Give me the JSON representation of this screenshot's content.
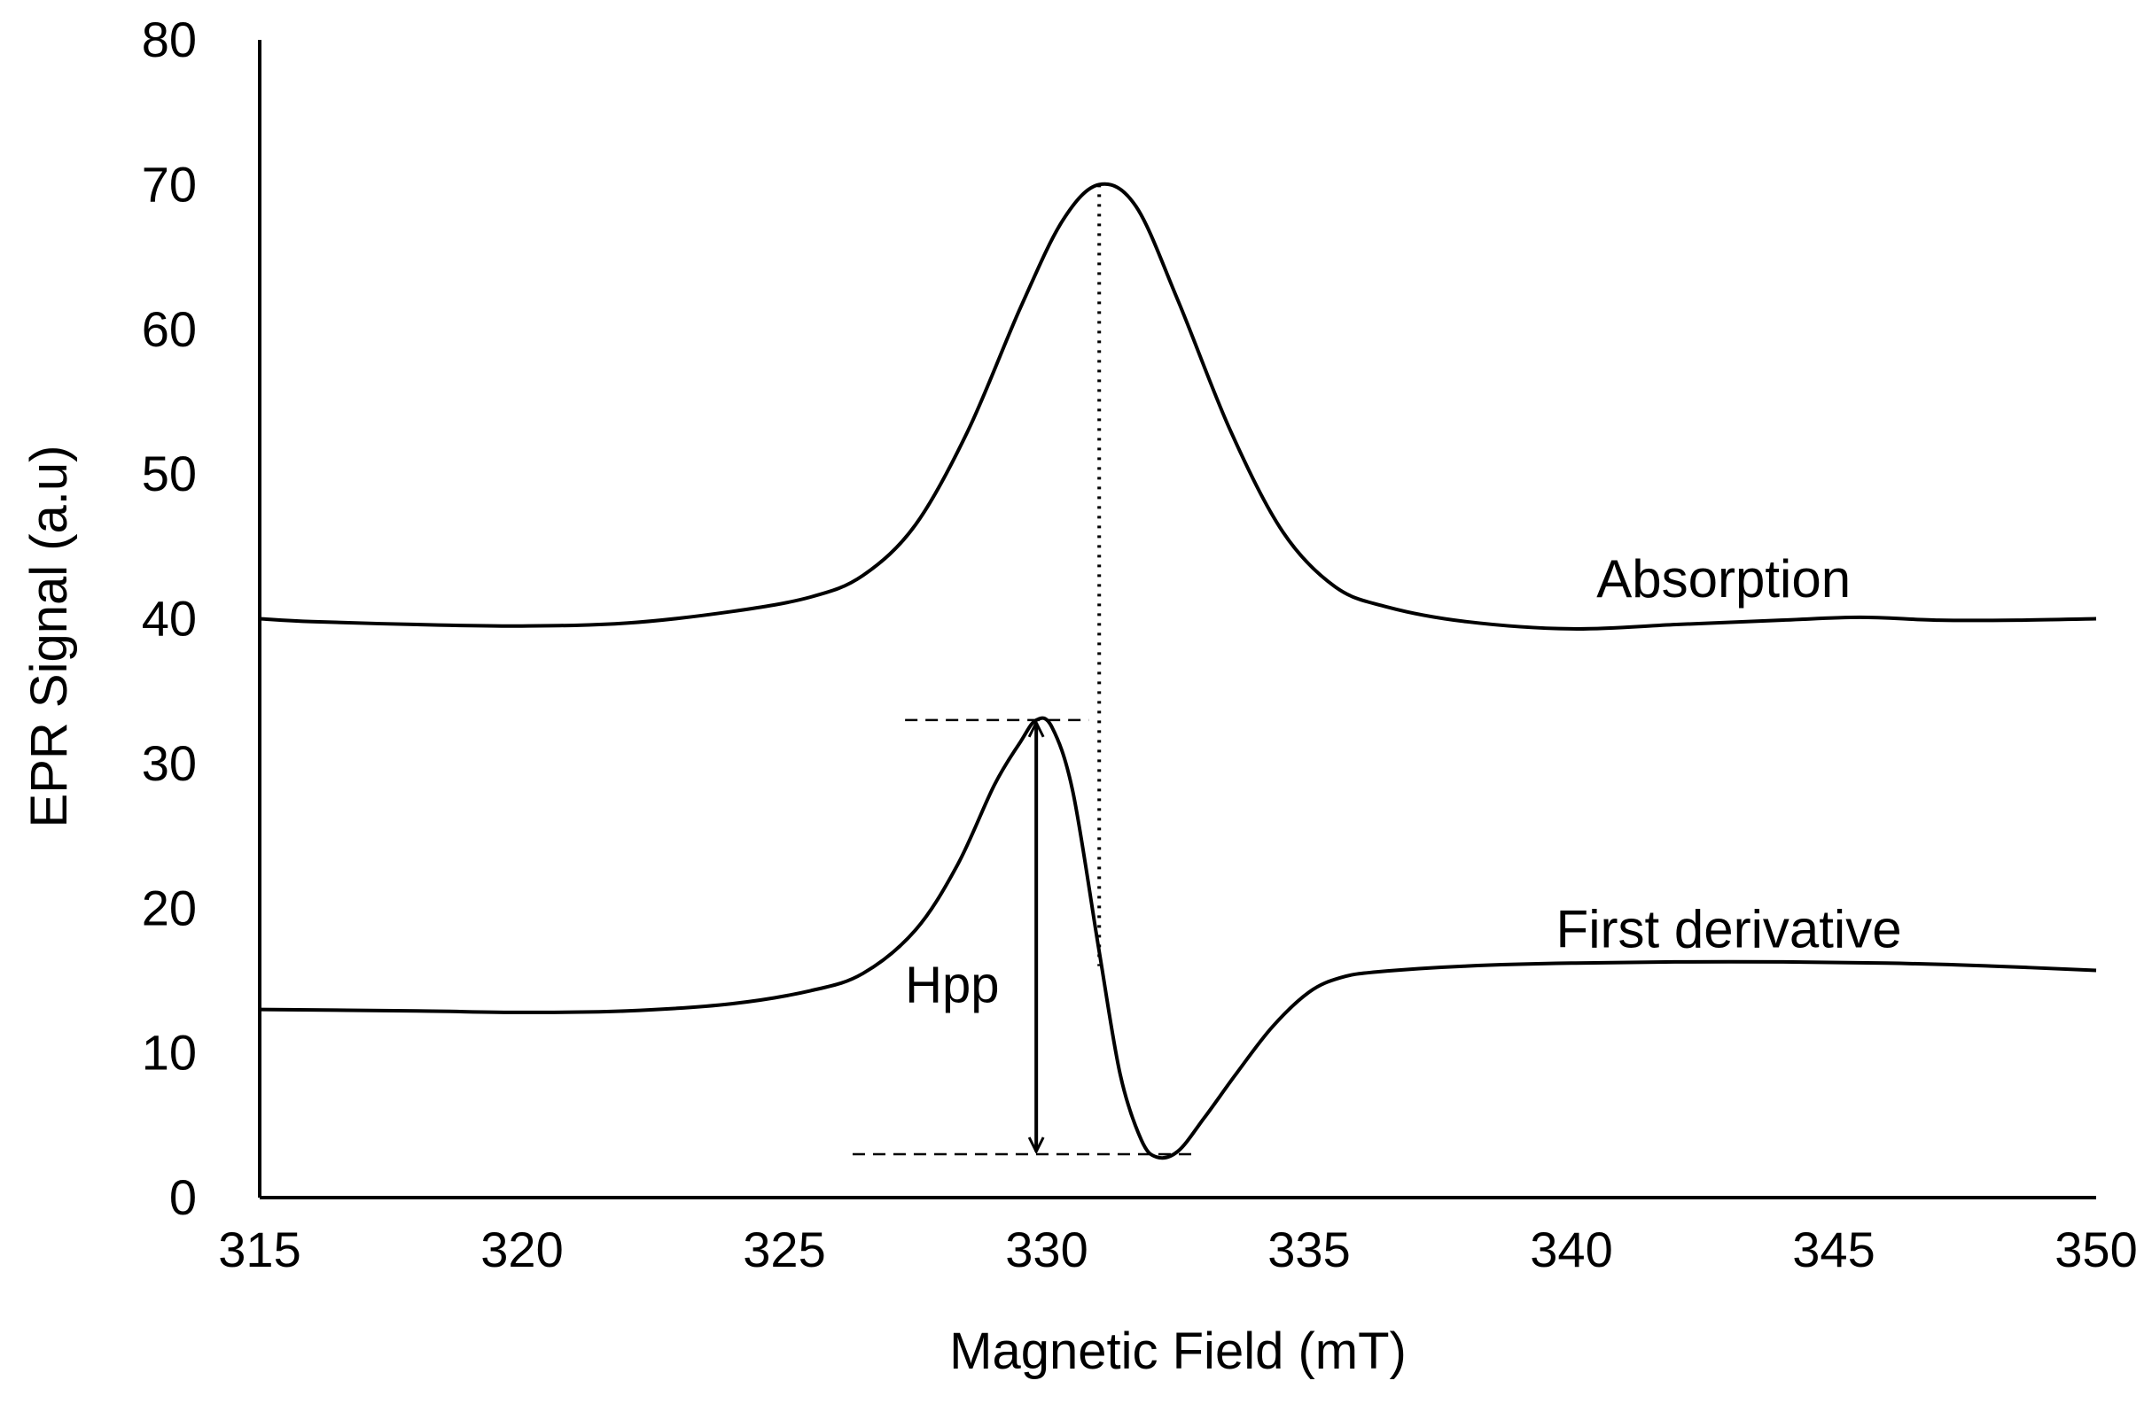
{
  "chart_data": {
    "type": "line",
    "title": "",
    "xlabel": "Magnetic Field (mT)",
    "ylabel": "EPR Signal (a.u)",
    "xlim": [
      315,
      350
    ],
    "ylim": [
      0,
      80
    ],
    "x_ticks": [
      315,
      320,
      325,
      330,
      335,
      340,
      345,
      350
    ],
    "y_ticks": [
      0,
      10,
      20,
      30,
      40,
      50,
      60,
      70,
      80
    ],
    "grid": false,
    "legend": "none",
    "series": [
      {
        "name": "Absorption",
        "x": [
          315,
          316,
          318,
          320,
          322,
          324,
          325.5,
          326.5,
          327.5,
          328.5,
          329.5,
          330.3,
          331,
          331.7,
          332.5,
          333.5,
          334.5,
          335.5,
          336.5,
          338,
          340,
          342,
          344,
          345.5,
          347,
          348.5,
          350
        ],
        "y": [
          40,
          39.8,
          39.6,
          39.5,
          39.7,
          40.5,
          41.5,
          43,
          46.5,
          53,
          61.5,
          67.5,
          70,
          68.5,
          62,
          53,
          46,
          42.2,
          40.8,
          39.8,
          39.3,
          39.6,
          39.9,
          40.1,
          39.9,
          39.9,
          40
        ]
      },
      {
        "name": "First derivative",
        "x": [
          315,
          318,
          320,
          322,
          324,
          325.5,
          326.5,
          327.5,
          328.3,
          329,
          329.5,
          329.8,
          330.1,
          330.5,
          331,
          331.4,
          331.8,
          332.1,
          332.5,
          333,
          333.6,
          334.3,
          335,
          335.6,
          336.3,
          338,
          340,
          343,
          346,
          348,
          350
        ],
        "y": [
          13,
          12.9,
          12.8,
          12.9,
          13.4,
          14.3,
          15.5,
          18.5,
          23,
          28.5,
          31.5,
          33,
          32.5,
          28,
          17,
          8.5,
          4,
          2.8,
          3.2,
          5.5,
          8.5,
          11.8,
          14.2,
          15.2,
          15.6,
          16,
          16.2,
          16.3,
          16.2,
          16,
          15.7
        ]
      }
    ],
    "annotations": [
      {
        "text": "Hpp",
        "type": "peak-to-peak amplitude",
        "from": [
          329.8,
          33
        ],
        "to": [
          329.8,
          3
        ]
      }
    ],
    "series_labels": {
      "absorption": "Absorption",
      "first_derivative": "First derivative"
    },
    "annotation_label": "Hpp"
  }
}
